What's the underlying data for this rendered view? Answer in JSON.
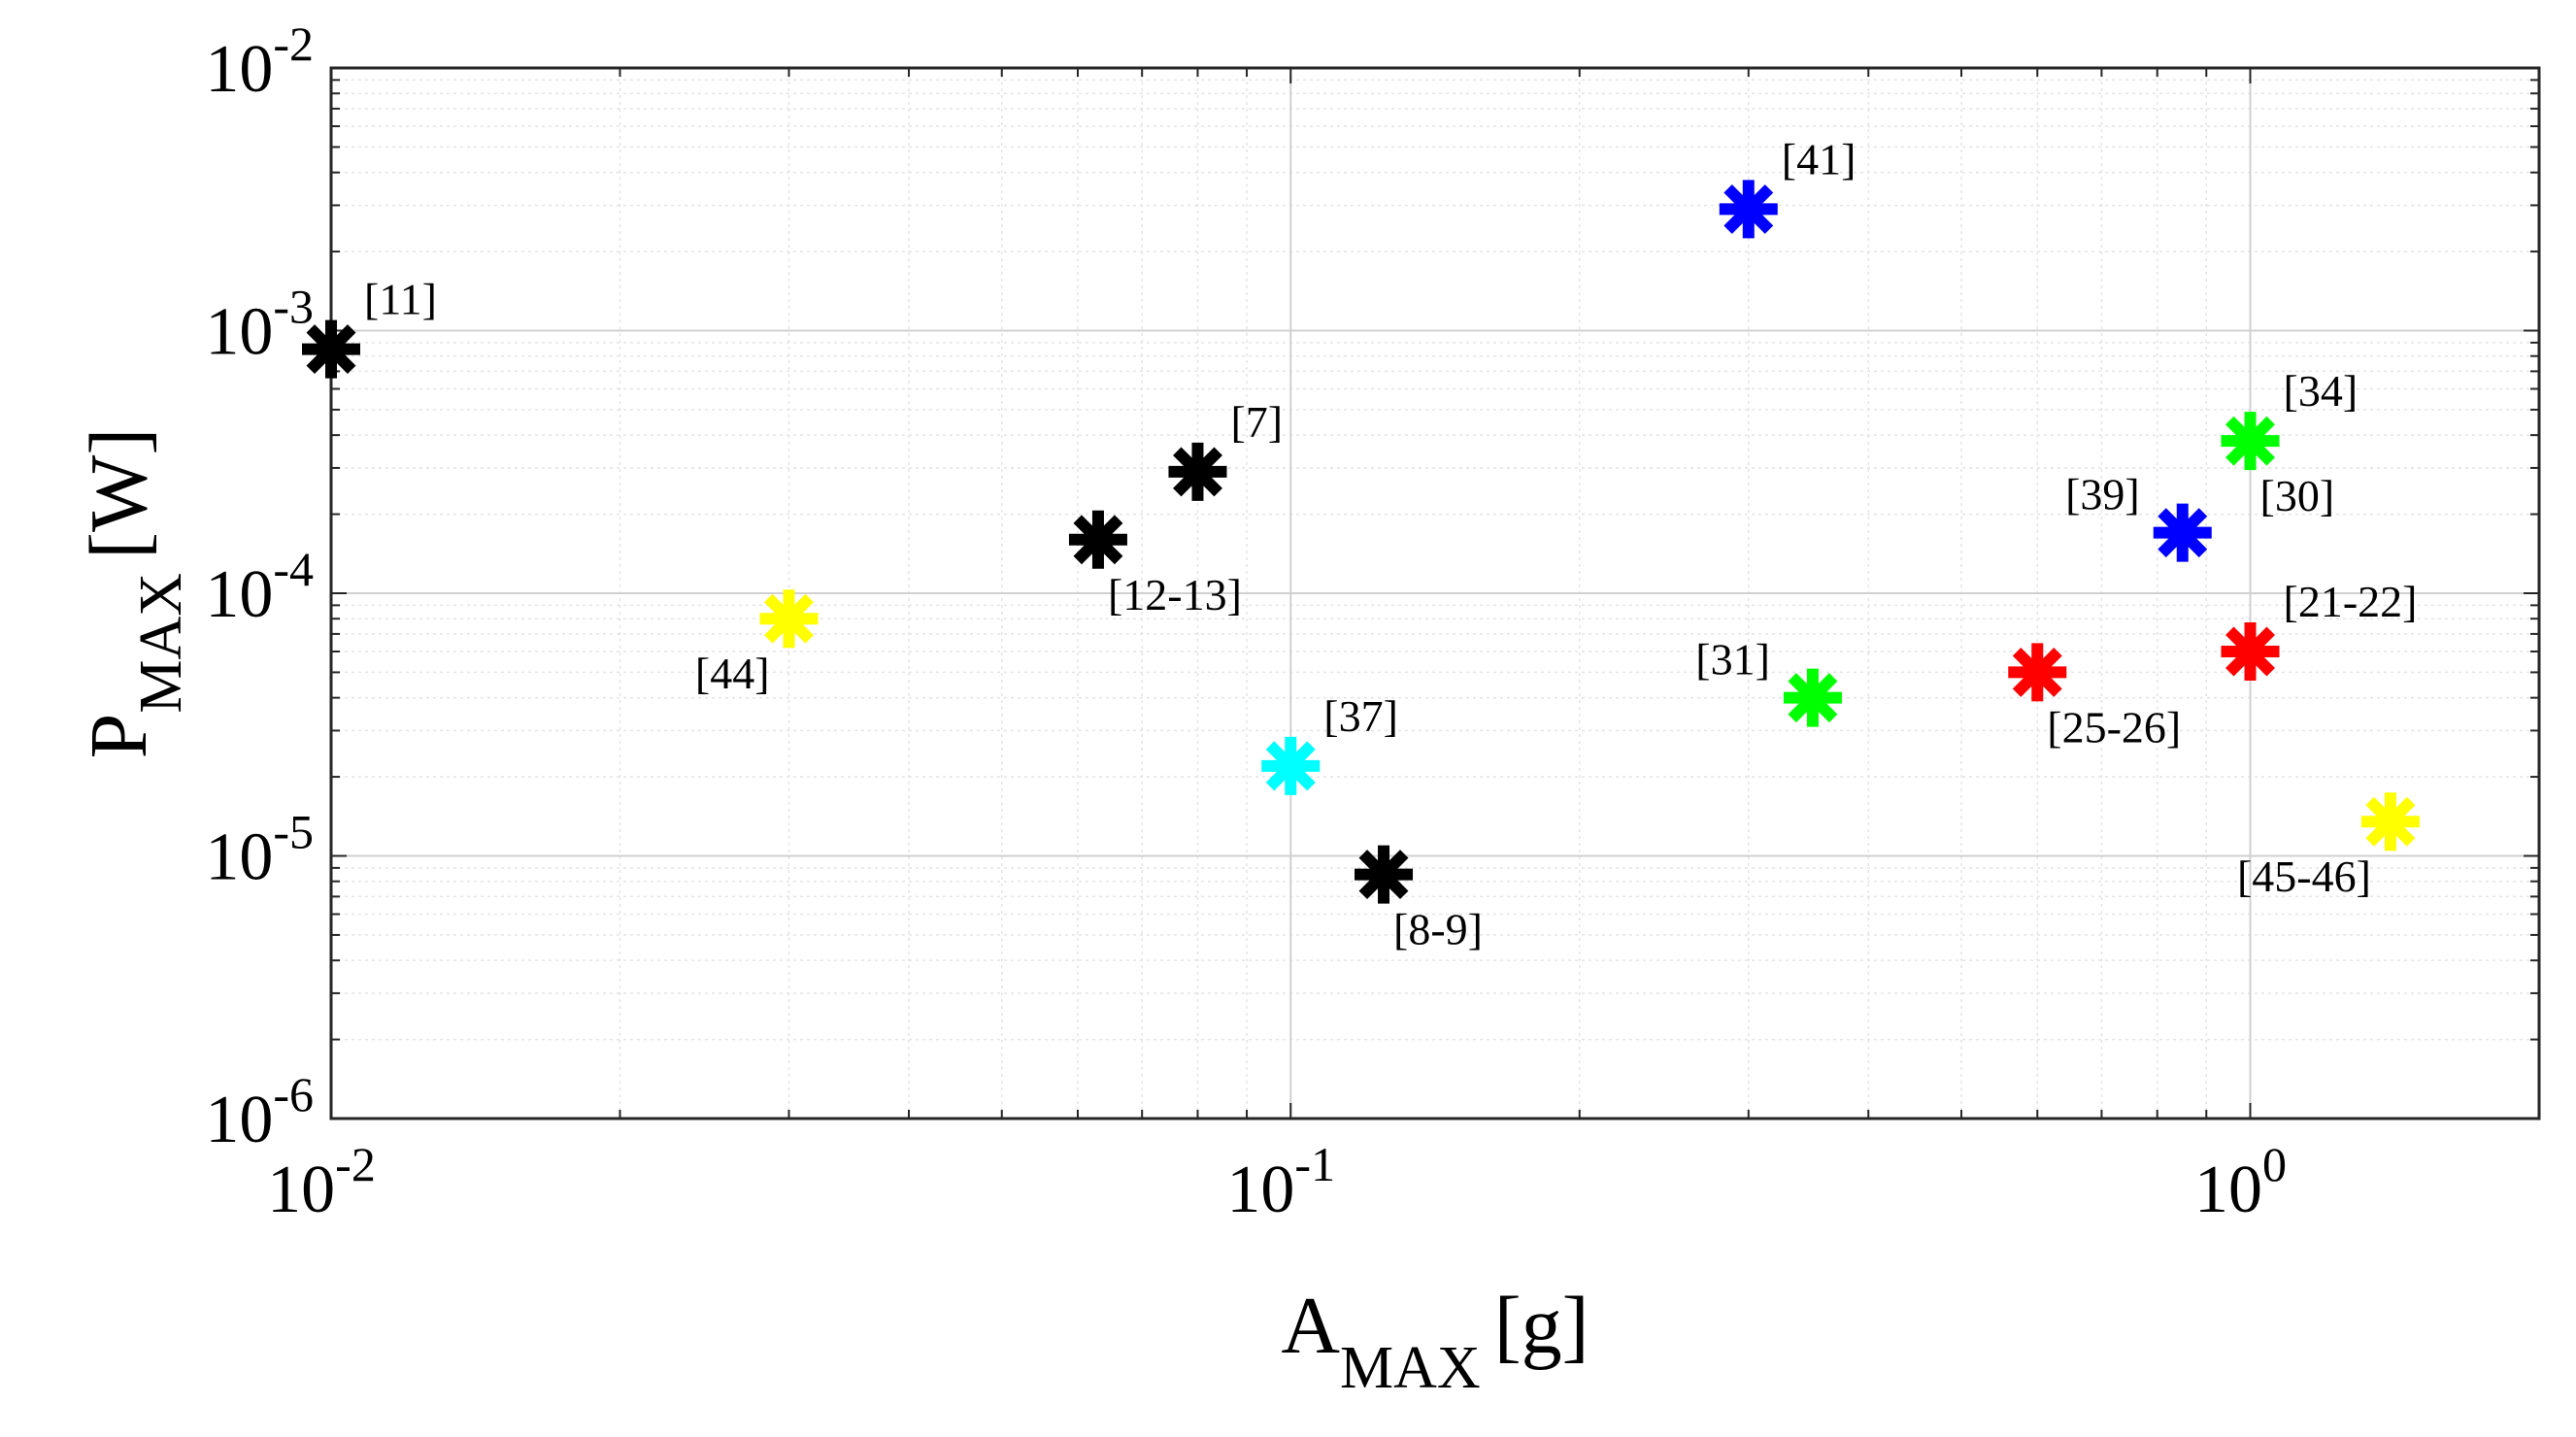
{
  "chart_data": {
    "type": "scatter",
    "title": "",
    "xlabel": {
      "main": "A",
      "sub": "MAX",
      "unit": "[g]"
    },
    "ylabel": {
      "main": "P",
      "sub": "MAX",
      "unit": "[W]"
    },
    "xscale": "log",
    "yscale": "log",
    "xlim": [
      0.01,
      2.0
    ],
    "ylim": [
      1e-06,
      0.01
    ],
    "grid": true,
    "marker": "asterisk",
    "x_ticks": [
      {
        "value": 0.01,
        "base": "10",
        "exp": "-2"
      },
      {
        "value": 0.1,
        "base": "10",
        "exp": "-1"
      },
      {
        "value": 1,
        "base": "10",
        "exp": "0"
      }
    ],
    "y_ticks": [
      {
        "value": 1e-06,
        "base": "10",
        "exp": "-6"
      },
      {
        "value": 1e-05,
        "base": "10",
        "exp": "-5"
      },
      {
        "value": 0.0001,
        "base": "10",
        "exp": "-4"
      },
      {
        "value": 0.001,
        "base": "10",
        "exp": "-3"
      },
      {
        "value": 0.01,
        "base": "10",
        "exp": "-2"
      }
    ],
    "points": [
      {
        "label": "[11]",
        "x": 0.01,
        "y": 0.00085,
        "color": "#000000",
        "label_pos": "upper-right"
      },
      {
        "label": "[7]",
        "x": 0.08,
        "y": 0.00029,
        "color": "#000000",
        "label_pos": "upper-right"
      },
      {
        "label": "[12-13]",
        "x": 0.063,
        "y": 0.00016,
        "color": "#000000",
        "label_pos": "lower-right"
      },
      {
        "label": "[44]",
        "x": 0.03,
        "y": 8e-05,
        "color": "#ffff00",
        "label_pos": "lower-left"
      },
      {
        "label": "[37]",
        "x": 0.1,
        "y": 2.2e-05,
        "color": "#00ffff",
        "label_pos": "upper-right"
      },
      {
        "label": "[8-9]",
        "x": 0.125,
        "y": 8.5e-06,
        "color": "#000000",
        "label_pos": "lower-right"
      },
      {
        "label": "[41]",
        "x": 0.3,
        "y": 0.0029,
        "color": "#0000ff",
        "label_pos": "upper-right"
      },
      {
        "label": "[31]",
        "x": 0.35,
        "y": 4e-05,
        "color": "#00ff00",
        "label_pos": "upper-left"
      },
      {
        "label": "[25-26]",
        "x": 0.6,
        "y": 5e-05,
        "color": "#ff0000",
        "label_pos": "lower-right"
      },
      {
        "label": "[39]",
        "x": 0.85,
        "y": 0.00017,
        "color": "#0000ff",
        "label_pos": "upper-left"
      },
      {
        "label": "[34]",
        "x": 1.0,
        "y": 0.00038,
        "color": "#00ff00",
        "label_pos": "upper-right"
      },
      {
        "label": "[30]",
        "x": 1.0,
        "y": 0.00038,
        "color": "#00ff00",
        "label_pos": "lower-right"
      },
      {
        "label": "[21-22]",
        "x": 1.0,
        "y": 6e-05,
        "color": "#ff0000",
        "label_pos": "upper-right"
      },
      {
        "label": "[45-46]",
        "x": 1.4,
        "y": 1.35e-05,
        "color": "#ffff00",
        "label_pos": "lower-left"
      }
    ]
  }
}
